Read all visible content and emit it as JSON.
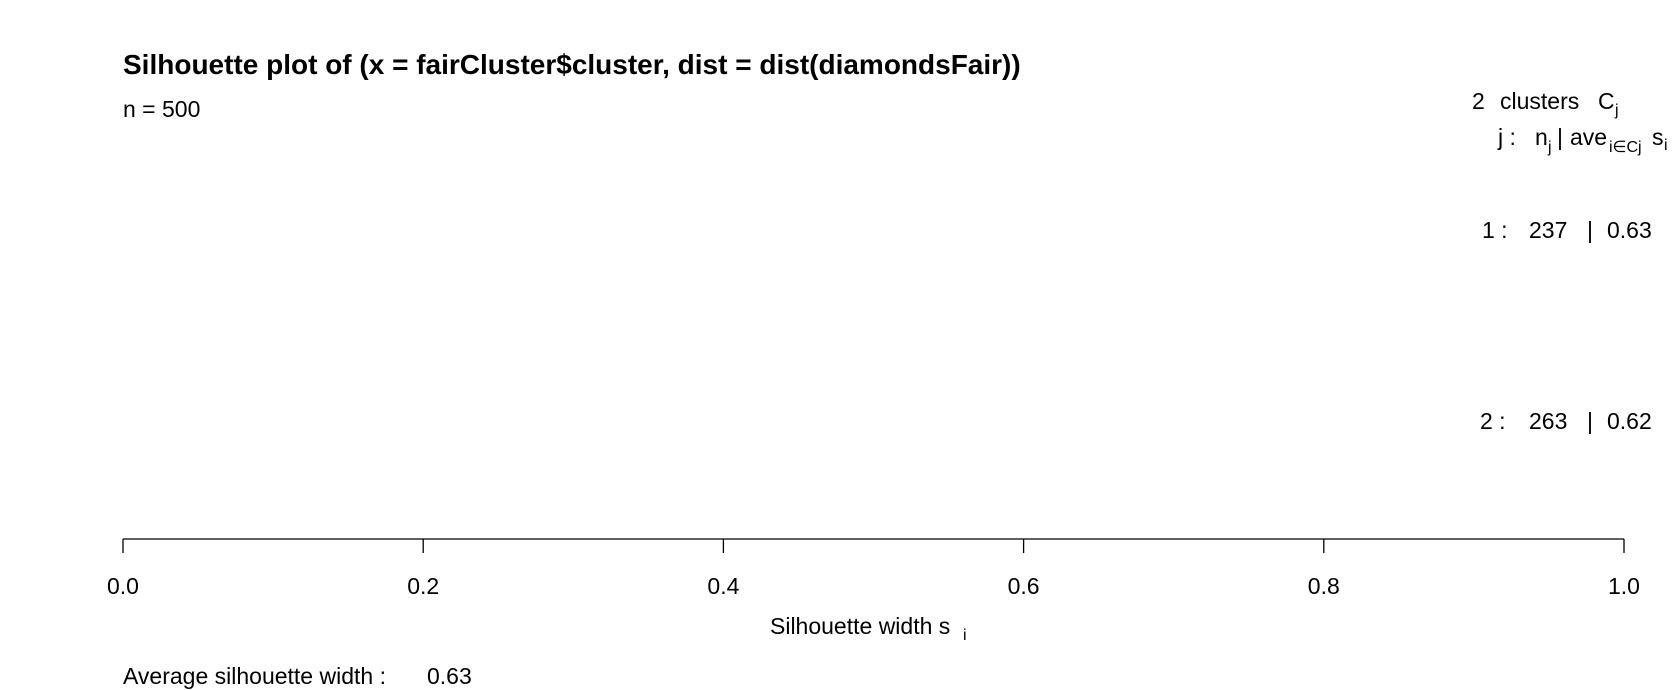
{
  "chart_data": {
    "type": "bar",
    "title": "Silhouette plot of (x = fairCluster$cluster, dist = dist(diamondsFair))",
    "n_label": "n = 500",
    "legend": {
      "header_count": "2",
      "header_clusters": "clusters",
      "header_C": "C",
      "header_C_sub": "j",
      "col_j": "j :",
      "col_n": "n",
      "col_n_sub": "j",
      "col_sep": "|",
      "col_ave": "ave",
      "col_ave_sub": "i∈Cj",
      "col_s": "s",
      "col_s_sub": "i"
    },
    "clusters": [
      {
        "j_label": "1 :",
        "n_label": "237",
        "sep": "|",
        "ave_label": "0.63",
        "n": 237,
        "ave": 0.63
      },
      {
        "j_label": "2 :",
        "n_label": "263",
        "sep": "|",
        "ave_label": "0.62",
        "n": 263,
        "ave": 0.62
      }
    ],
    "xlim": [
      0,
      1
    ],
    "xticks": [
      0.0,
      0.2,
      0.4,
      0.6,
      0.8,
      1.0
    ],
    "xtick_labels": [
      "0.0",
      "0.2",
      "0.4",
      "0.6",
      "0.8",
      "1.0"
    ],
    "xlabel": "Silhouette width s",
    "xlabel_sub": "i",
    "bar_color": "#ffffff",
    "footer_label": "Average silhouette width :",
    "footer_value": "0.63"
  }
}
